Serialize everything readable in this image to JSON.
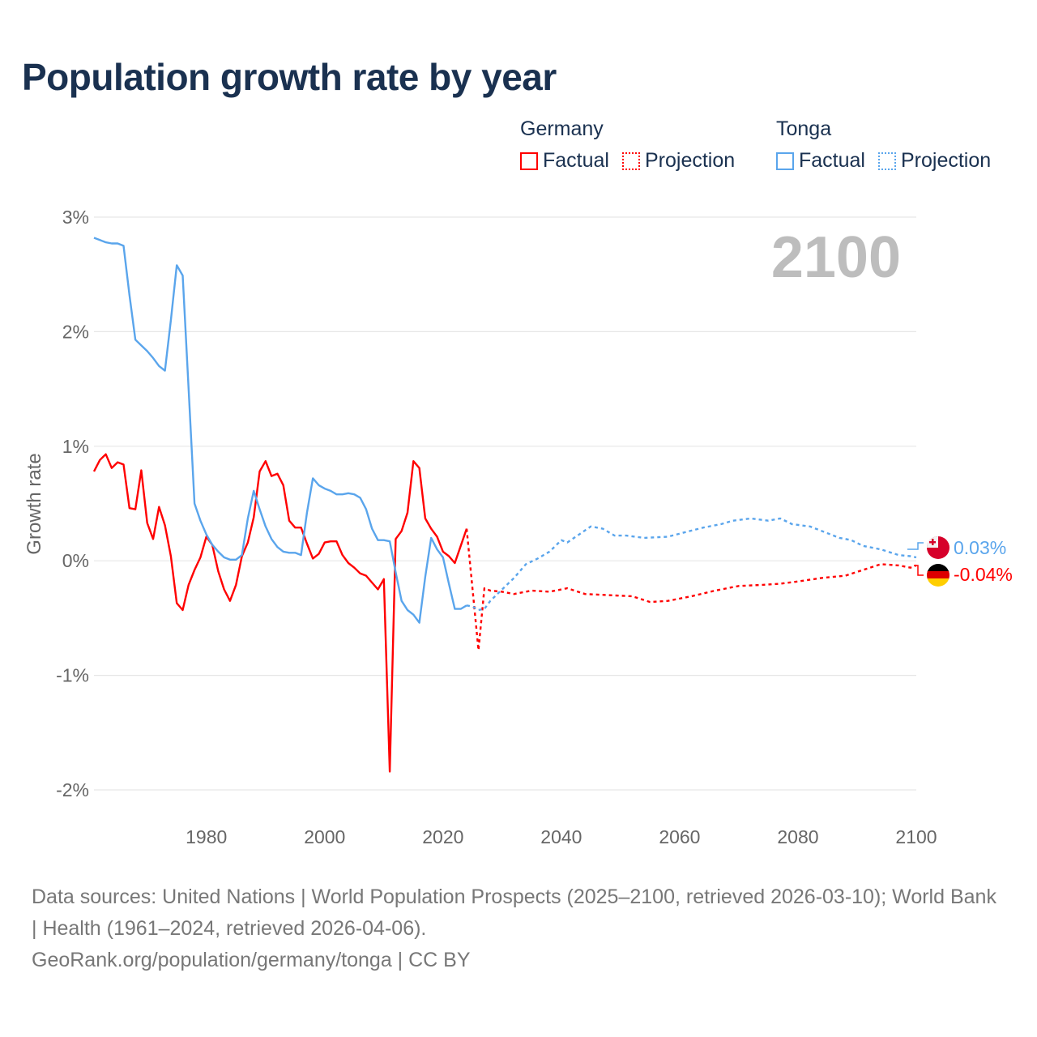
{
  "chart_data": {
    "type": "line",
    "title": "Population growth rate by year",
    "ylabel": "Growth rate",
    "xlabel": "",
    "xlim": [
      1961,
      2100
    ],
    "ylim": [
      -2,
      3
    ],
    "x_ticks": [
      1980,
      2000,
      2020,
      2040,
      2060,
      2080,
      2100
    ],
    "y_ticks": [
      {
        "v": 3,
        "label": "3%"
      },
      {
        "v": 2,
        "label": "2%"
      },
      {
        "v": 1,
        "label": "1%"
      },
      {
        "v": 0,
        "label": "0%"
      },
      {
        "v": -1,
        "label": "-1%"
      },
      {
        "v": -2,
        "label": "-2%"
      }
    ],
    "grid": true,
    "year_badge": "2100",
    "colors": {
      "Germany": "#ff0000",
      "Tonga": "#5aa5ec"
    },
    "legend": [
      {
        "group": "Germany",
        "items": [
          "Factual",
          "Projection"
        ]
      },
      {
        "group": "Tonga",
        "items": [
          "Factual",
          "Projection"
        ]
      }
    ],
    "end_labels": [
      {
        "country": "Tonga",
        "label": "0.03%",
        "value": 0.03
      },
      {
        "country": "Germany",
        "label": "-0.04%",
        "value": -0.04
      }
    ],
    "series": [
      {
        "country": "Germany",
        "kind": "Factual",
        "points": [
          [
            1961,
            0.78
          ],
          [
            1962,
            0.88
          ],
          [
            1963,
            0.93
          ],
          [
            1964,
            0.81
          ],
          [
            1965,
            0.86
          ],
          [
            1966,
            0.84
          ],
          [
            1967,
            0.46
          ],
          [
            1968,
            0.45
          ],
          [
            1969,
            0.79
          ],
          [
            1970,
            0.33
          ],
          [
            1971,
            0.19
          ],
          [
            1972,
            0.47
          ],
          [
            1973,
            0.31
          ],
          [
            1974,
            0.04
          ],
          [
            1975,
            -0.37
          ],
          [
            1976,
            -0.43
          ],
          [
            1977,
            -0.21
          ],
          [
            1978,
            -0.08
          ],
          [
            1979,
            0.03
          ],
          [
            1980,
            0.21
          ],
          [
            1981,
            0.14
          ],
          [
            1982,
            -0.09
          ],
          [
            1983,
            -0.25
          ],
          [
            1984,
            -0.35
          ],
          [
            1985,
            -0.21
          ],
          [
            1986,
            0.04
          ],
          [
            1987,
            0.16
          ],
          [
            1988,
            0.38
          ],
          [
            1989,
            0.78
          ],
          [
            1990,
            0.87
          ],
          [
            1991,
            0.74
          ],
          [
            1992,
            0.76
          ],
          [
            1993,
            0.66
          ],
          [
            1994,
            0.35
          ],
          [
            1995,
            0.29
          ],
          [
            1996,
            0.29
          ],
          [
            1997,
            0.15
          ],
          [
            1998,
            0.02
          ],
          [
            1999,
            0.06
          ],
          [
            2000,
            0.16
          ],
          [
            2001,
            0.17
          ],
          [
            2002,
            0.17
          ],
          [
            2003,
            0.05
          ],
          [
            2004,
            -0.02
          ],
          [
            2005,
            -0.06
          ],
          [
            2006,
            -0.11
          ],
          [
            2007,
            -0.13
          ],
          [
            2008,
            -0.19
          ],
          [
            2009,
            -0.25
          ],
          [
            2010,
            -0.16
          ],
          [
            2011,
            -1.84
          ],
          [
            2012,
            0.19
          ],
          [
            2013,
            0.26
          ],
          [
            2014,
            0.42
          ],
          [
            2015,
            0.87
          ],
          [
            2016,
            0.81
          ],
          [
            2017,
            0.37
          ],
          [
            2018,
            0.28
          ],
          [
            2019,
            0.21
          ],
          [
            2020,
            0.08
          ],
          [
            2021,
            0.04
          ],
          [
            2022,
            -0.02
          ],
          [
            2023,
            0.13
          ],
          [
            2024,
            0.28
          ]
        ]
      },
      {
        "country": "Germany",
        "kind": "Projection",
        "points": [
          [
            2024,
            0.28
          ],
          [
            2025,
            -0.25
          ],
          [
            2026,
            -0.78
          ],
          [
            2027,
            -0.24
          ],
          [
            2028,
            -0.26
          ],
          [
            2030,
            -0.27
          ],
          [
            2032,
            -0.29
          ],
          [
            2035,
            -0.26
          ],
          [
            2038,
            -0.27
          ],
          [
            2041,
            -0.24
          ],
          [
            2044,
            -0.29
          ],
          [
            2048,
            -0.3
          ],
          [
            2052,
            -0.31
          ],
          [
            2055,
            -0.36
          ],
          [
            2058,
            -0.35
          ],
          [
            2062,
            -0.31
          ],
          [
            2066,
            -0.26
          ],
          [
            2070,
            -0.22
          ],
          [
            2074,
            -0.21
          ],
          [
            2077,
            -0.2
          ],
          [
            2080,
            -0.18
          ],
          [
            2084,
            -0.15
          ],
          [
            2088,
            -0.13
          ],
          [
            2091,
            -0.08
          ],
          [
            2094,
            -0.03
          ],
          [
            2097,
            -0.04
          ],
          [
            2099,
            -0.06
          ],
          [
            2100,
            -0.04
          ]
        ]
      },
      {
        "country": "Tonga",
        "kind": "Factual",
        "points": [
          [
            1961,
            2.82
          ],
          [
            1962,
            2.8
          ],
          [
            1963,
            2.78
          ],
          [
            1964,
            2.77
          ],
          [
            1965,
            2.77
          ],
          [
            1966,
            2.75
          ],
          [
            1967,
            2.32
          ],
          [
            1968,
            1.93
          ],
          [
            1969,
            1.88
          ],
          [
            1970,
            1.83
          ],
          [
            1971,
            1.77
          ],
          [
            1972,
            1.7
          ],
          [
            1973,
            1.66
          ],
          [
            1974,
            2.1
          ],
          [
            1975,
            2.58
          ],
          [
            1976,
            2.49
          ],
          [
            1977,
            1.5
          ],
          [
            1978,
            0.5
          ],
          [
            1979,
            0.35
          ],
          [
            1980,
            0.23
          ],
          [
            1981,
            0.14
          ],
          [
            1982,
            0.08
          ],
          [
            1983,
            0.03
          ],
          [
            1984,
            0.01
          ],
          [
            1985,
            0.01
          ],
          [
            1986,
            0.05
          ],
          [
            1987,
            0.37
          ],
          [
            1988,
            0.61
          ],
          [
            1989,
            0.45
          ],
          [
            1990,
            0.3
          ],
          [
            1991,
            0.19
          ],
          [
            1992,
            0.12
          ],
          [
            1993,
            0.08
          ],
          [
            1994,
            0.07
          ],
          [
            1995,
            0.07
          ],
          [
            1996,
            0.05
          ],
          [
            1997,
            0.42
          ],
          [
            1998,
            0.72
          ],
          [
            1999,
            0.66
          ],
          [
            2000,
            0.63
          ],
          [
            2001,
            0.61
          ],
          [
            2002,
            0.58
          ],
          [
            2003,
            0.58
          ],
          [
            2004,
            0.59
          ],
          [
            2005,
            0.58
          ],
          [
            2006,
            0.55
          ],
          [
            2007,
            0.45
          ],
          [
            2008,
            0.28
          ],
          [
            2009,
            0.18
          ],
          [
            2010,
            0.18
          ],
          [
            2011,
            0.17
          ],
          [
            2012,
            -0.1
          ],
          [
            2013,
            -0.35
          ],
          [
            2014,
            -0.43
          ],
          [
            2015,
            -0.47
          ],
          [
            2016,
            -0.54
          ],
          [
            2017,
            -0.14
          ],
          [
            2018,
            0.2
          ],
          [
            2019,
            0.1
          ],
          [
            2020,
            0.03
          ],
          [
            2021,
            -0.2
          ],
          [
            2022,
            -0.42
          ],
          [
            2023,
            -0.42
          ],
          [
            2024,
            -0.39
          ]
        ]
      },
      {
        "country": "Tonga",
        "kind": "Projection",
        "points": [
          [
            2024,
            -0.39
          ],
          [
            2025,
            -0.4
          ],
          [
            2026,
            -0.43
          ],
          [
            2027,
            -0.42
          ],
          [
            2028,
            -0.35
          ],
          [
            2030,
            -0.25
          ],
          [
            2032,
            -0.15
          ],
          [
            2034,
            -0.03
          ],
          [
            2036,
            0.02
          ],
          [
            2038,
            0.08
          ],
          [
            2040,
            0.18
          ],
          [
            2041,
            0.16
          ],
          [
            2043,
            0.23
          ],
          [
            2045,
            0.3
          ],
          [
            2047,
            0.28
          ],
          [
            2049,
            0.22
          ],
          [
            2051,
            0.22
          ],
          [
            2054,
            0.2
          ],
          [
            2058,
            0.21
          ],
          [
            2061,
            0.25
          ],
          [
            2064,
            0.29
          ],
          [
            2067,
            0.32
          ],
          [
            2069,
            0.35
          ],
          [
            2072,
            0.37
          ],
          [
            2075,
            0.35
          ],
          [
            2077,
            0.37
          ],
          [
            2079,
            0.32
          ],
          [
            2082,
            0.3
          ],
          [
            2084,
            0.26
          ],
          [
            2087,
            0.2
          ],
          [
            2089,
            0.18
          ],
          [
            2091,
            0.13
          ],
          [
            2094,
            0.1
          ],
          [
            2097,
            0.05
          ],
          [
            2099,
            0.04
          ],
          [
            2100,
            0.03
          ]
        ]
      }
    ]
  },
  "footer": {
    "sources": "Data sources: United Nations | World Population Prospects (2025–2100, retrieved 2026-03-10); World Bank | Health (1961–2024, retrieved 2026-04-06).",
    "credit": "GeoRank.org/population/germany/tonga | CC BY"
  }
}
